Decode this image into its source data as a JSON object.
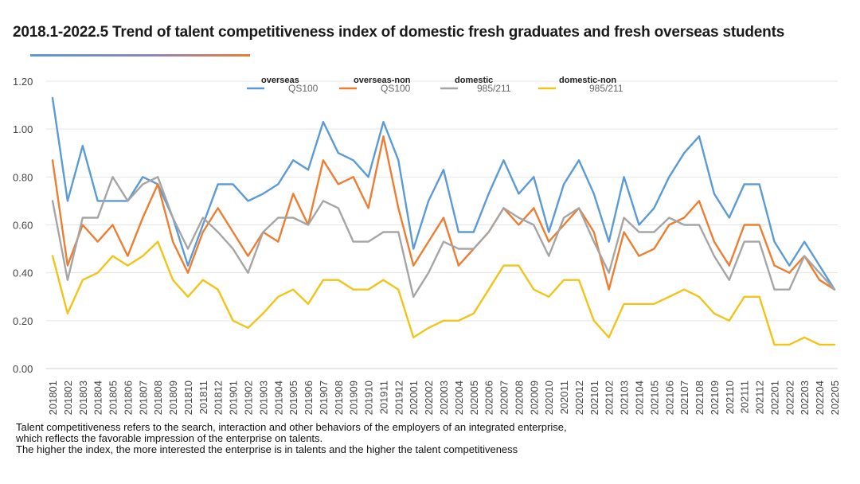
{
  "title": "2018.1-2022.5 Trend of talent competitiveness index of domestic fresh graduates and fresh overseas students",
  "notes": [
    "Talent competitiveness refers to the search, interaction and other behaviors of the employers of an integrated enterprise,",
    "which reflects the favorable impression of the enterprise on talents.",
    "The higher the index, the more interested the enterprise is in talents and the higher the talent competitiveness"
  ],
  "chart_data": {
    "type": "line",
    "title": "2018.1-2022.5 Trend of talent competitiveness index of domestic fresh graduates and fresh overseas students",
    "ylim": [
      0,
      1.2
    ],
    "yticks": [
      "0.00",
      "0.20",
      "0.40",
      "0.60",
      "0.80",
      "1.00",
      "1.20"
    ],
    "grid": true,
    "legend_position": "top",
    "x": [
      "201801",
      "201802",
      "201803",
      "201804",
      "201805",
      "201806",
      "201807",
      "201808",
      "201809",
      "201810",
      "201811",
      "201812",
      "201901",
      "201902",
      "201903",
      "201904",
      "201905",
      "201906",
      "201907",
      "201908",
      "201909",
      "201910",
      "201911",
      "201912",
      "202001",
      "202002",
      "202003",
      "202004",
      "202005",
      "202006",
      "202007",
      "202008",
      "202009",
      "202010",
      "202011",
      "202012",
      "202101",
      "202102",
      "202103",
      "202104",
      "202105",
      "202106",
      "202107",
      "202108",
      "202109",
      "202110",
      "202111",
      "202112",
      "202201",
      "202202",
      "202203",
      "202204",
      "202205"
    ],
    "series": [
      {
        "name": "overseas",
        "sub": "QS100",
        "color": "#5b9bd5",
        "values": [
          1.13,
          0.7,
          0.93,
          0.7,
          0.7,
          0.7,
          0.8,
          0.77,
          0.63,
          0.43,
          0.6,
          0.77,
          0.77,
          0.7,
          0.73,
          0.77,
          0.87,
          0.83,
          1.03,
          0.9,
          0.87,
          0.8,
          1.03,
          0.87,
          0.5,
          0.7,
          0.83,
          0.57,
          0.57,
          0.73,
          0.87,
          0.73,
          0.8,
          0.57,
          0.77,
          0.87,
          0.73,
          0.53,
          0.8,
          0.6,
          0.67,
          0.8,
          0.9,
          0.97,
          0.73,
          0.63,
          0.77,
          0.77,
          0.53,
          0.43,
          0.53,
          0.43,
          0.33
        ]
      },
      {
        "name": "overseas-non",
        "sub": "QS100",
        "color": "#ed7d31",
        "values": [
          0.87,
          0.43,
          0.6,
          0.53,
          0.6,
          0.47,
          0.63,
          0.77,
          0.53,
          0.4,
          0.57,
          0.67,
          0.57,
          0.47,
          0.57,
          0.53,
          0.73,
          0.6,
          0.87,
          0.77,
          0.8,
          0.67,
          0.97,
          0.67,
          0.43,
          0.53,
          0.63,
          0.43,
          0.5,
          0.57,
          0.67,
          0.6,
          0.67,
          0.53,
          0.6,
          0.67,
          0.57,
          0.33,
          0.57,
          0.47,
          0.5,
          0.6,
          0.63,
          0.7,
          0.53,
          0.43,
          0.6,
          0.6,
          0.43,
          0.4,
          0.47,
          0.37,
          0.33
        ]
      },
      {
        "name": "domestic",
        "sub": "985/211",
        "color": "#a5a5a5",
        "values": [
          0.7,
          0.37,
          0.63,
          0.63,
          0.8,
          0.7,
          0.77,
          0.8,
          0.63,
          0.5,
          0.63,
          0.57,
          0.5,
          0.4,
          0.57,
          0.63,
          0.63,
          0.6,
          0.7,
          0.67,
          0.53,
          0.53,
          0.57,
          0.57,
          0.3,
          0.4,
          0.53,
          0.5,
          0.5,
          0.57,
          0.67,
          0.63,
          0.6,
          0.47,
          0.63,
          0.67,
          0.53,
          0.4,
          0.63,
          0.57,
          0.57,
          0.63,
          0.6,
          0.6,
          0.47,
          0.37,
          0.53,
          0.53,
          0.33,
          0.33,
          0.47,
          0.4,
          0.33
        ]
      },
      {
        "name": "domestic-non",
        "sub": "985/211",
        "color": "#f0c419",
        "values": [
          0.47,
          0.23,
          0.37,
          0.4,
          0.47,
          0.43,
          0.47,
          0.53,
          0.37,
          0.3,
          0.37,
          0.33,
          0.2,
          0.17,
          0.23,
          0.3,
          0.33,
          0.27,
          0.37,
          0.37,
          0.33,
          0.33,
          0.37,
          0.33,
          0.13,
          0.17,
          0.2,
          0.2,
          0.23,
          0.33,
          0.43,
          0.43,
          0.33,
          0.3,
          0.37,
          0.37,
          0.2,
          0.13,
          0.27,
          0.27,
          0.27,
          0.3,
          0.33,
          0.3,
          0.23,
          0.2,
          0.3,
          0.3,
          0.1,
          0.1,
          0.13,
          0.1,
          0.1
        ]
      }
    ]
  }
}
